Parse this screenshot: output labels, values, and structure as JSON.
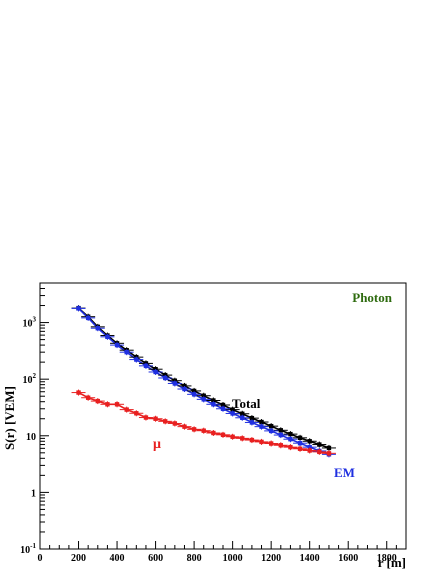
{
  "chart_data": {
    "type": "scatter",
    "title": "Photon",
    "xlabel": "r [m]",
    "ylabel": "S(r) [VEM]",
    "xlim": [
      0,
      1900
    ],
    "ylim": [
      0.1,
      5000
    ],
    "yscale": "log",
    "grid": false,
    "xticks": [
      0,
      200,
      400,
      600,
      800,
      1000,
      1200,
      1400,
      1600,
      1800
    ],
    "xtick_labels": [
      "0",
      "200",
      "400",
      "600",
      "800",
      "1000",
      "1200",
      "1400",
      "1600",
      "1800"
    ],
    "yticks": [
      0.1,
      1,
      10,
      100,
      1000
    ],
    "ytick_labels": [
      {
        "base": "10",
        "exp": "-1"
      },
      {
        "base": "1",
        "exp": ""
      },
      {
        "base": "10",
        "exp": ""
      },
      {
        "base": "10",
        "exp": "2"
      },
      {
        "base": "10",
        "exp": "3"
      }
    ],
    "title_color": "#2e6b0f",
    "series": [
      {
        "name": "Total",
        "color": "#000000",
        "x": [
          200,
          250,
          300,
          350,
          400,
          450,
          500,
          550,
          600,
          650,
          700,
          750,
          800,
          850,
          900,
          950,
          1000,
          1050,
          1100,
          1150,
          1200,
          1250,
          1300,
          1350,
          1400,
          1450,
          1500
        ],
        "y": [
          1800,
          1270,
          840,
          590,
          430,
          325,
          245,
          190,
          150,
          118,
          94,
          76,
          62,
          51,
          42,
          35,
          29,
          24.5,
          20.5,
          17.5,
          14.8,
          12.5,
          10.7,
          9.2,
          8.0,
          7.0,
          6.1
        ]
      },
      {
        "name": "EM",
        "color": "#1f2fe0",
        "x": [
          200,
          250,
          300,
          350,
          400,
          450,
          500,
          550,
          600,
          650,
          700,
          750,
          800,
          850,
          900,
          950,
          1000,
          1050,
          1100,
          1150,
          1200,
          1250,
          1300,
          1350,
          1400,
          1450,
          1500
        ],
        "y": [
          1780,
          1210,
          795,
          560,
          400,
          300,
          222,
          172,
          134,
          105,
          84,
          67,
          54,
          44,
          36,
          30,
          24.8,
          20.8,
          17.2,
          14.5,
          12.2,
          10.3,
          8.7,
          7.4,
          6.3,
          5.4,
          4.7
        ]
      },
      {
        "name": "μ",
        "color": "#e82020",
        "x": [
          200,
          250,
          300,
          350,
          400,
          450,
          500,
          550,
          600,
          650,
          700,
          750,
          800,
          850,
          900,
          950,
          1000,
          1050,
          1100,
          1150,
          1200,
          1250,
          1300,
          1350,
          1400,
          1450,
          1500
        ],
        "y": [
          58,
          47,
          41,
          36,
          36,
          29,
          25,
          21,
          20,
          18,
          16.5,
          14.5,
          13,
          12.3,
          11.2,
          10.4,
          9.6,
          9.0,
          8.4,
          7.8,
          7.3,
          6.8,
          6.3,
          5.9,
          5.5,
          5.2,
          4.9
        ]
      }
    ],
    "annotations": [
      {
        "text": "Total",
        "color": "#000000"
      },
      {
        "text": "EM",
        "color": "#1f2fe0"
      },
      {
        "text": "μ",
        "color": "#e82020"
      }
    ]
  }
}
